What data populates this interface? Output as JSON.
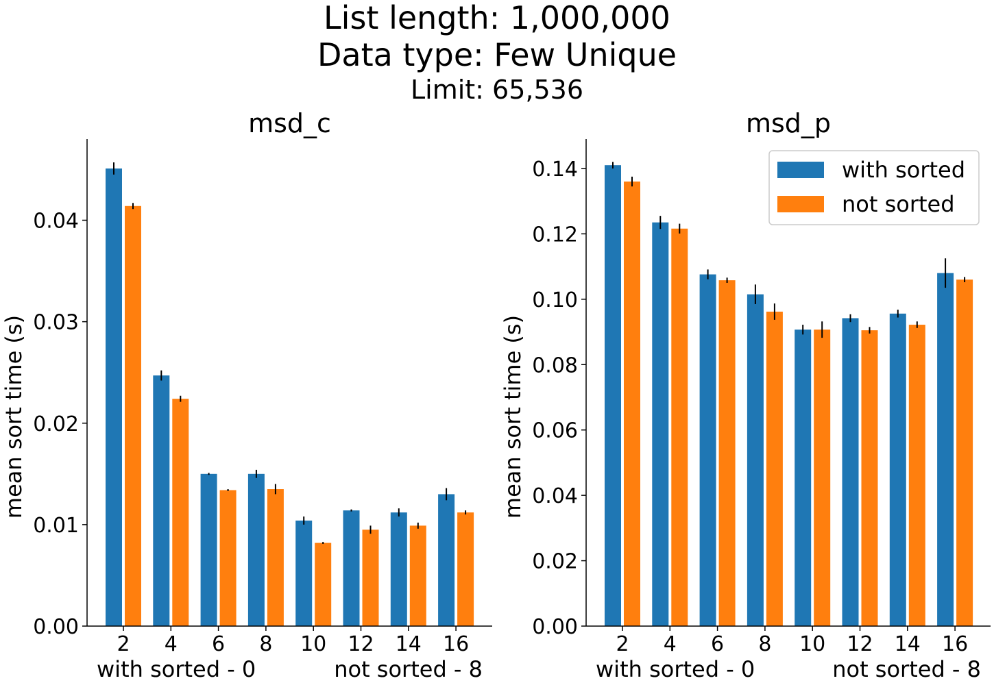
{
  "figure": {
    "title_line1": "List length: 1,000,000",
    "title_line2": "Data type: Few Unique",
    "title_line3": "Limit: 65,536"
  },
  "legend": {
    "placement": "top-right",
    "entries": [
      "with sorted",
      "not sorted"
    ]
  },
  "colors": {
    "with_sorted": "#1f77b4",
    "not_sorted": "#ff7f0e",
    "error_bar": "#000000"
  },
  "chart_data": [
    {
      "type": "bar",
      "title": "msd_c",
      "xlabel_left": "with sorted - 0",
      "xlabel_right": "not sorted - 8",
      "ylabel": "mean sort time (s)",
      "categories": [
        "2",
        "4",
        "6",
        "8",
        "10",
        "12",
        "14",
        "16"
      ],
      "ylim": [
        0,
        0.048
      ],
      "yticks": [
        0.0,
        0.01,
        0.02,
        0.03,
        0.04
      ],
      "ytick_labels": [
        "0.00",
        "0.01",
        "0.02",
        "0.03",
        "0.04"
      ],
      "grid": false,
      "series": [
        {
          "name": "with sorted",
          "values": [
            0.0451,
            0.0247,
            0.015,
            0.015,
            0.0104,
            0.0114,
            0.0112,
            0.013
          ],
          "errors": [
            0.0006,
            0.0005,
            0.0001,
            0.0004,
            0.0004,
            0.0001,
            0.0004,
            0.0006
          ]
        },
        {
          "name": "not sorted",
          "values": [
            0.0414,
            0.0224,
            0.0134,
            0.0135,
            0.0082,
            0.0095,
            0.0099,
            0.0112
          ],
          "errors": [
            0.0003,
            0.0003,
            0.0001,
            0.0005,
            0.0001,
            0.0004,
            0.0003,
            0.0002
          ]
        }
      ]
    },
    {
      "type": "bar",
      "title": "msd_p",
      "xlabel_left": "with sorted - 0",
      "xlabel_right": "not sorted - 8",
      "ylabel": "mean sort time (s)",
      "categories": [
        "2",
        "4",
        "6",
        "8",
        "10",
        "12",
        "14",
        "16"
      ],
      "ylim": [
        0,
        0.149
      ],
      "yticks": [
        0.0,
        0.02,
        0.04,
        0.06,
        0.08,
        0.1,
        0.12,
        0.14
      ],
      "ytick_labels": [
        "0.00",
        "0.02",
        "0.04",
        "0.06",
        "0.08",
        "0.10",
        "0.12",
        "0.14"
      ],
      "grid": false,
      "series": [
        {
          "name": "with sorted",
          "values": [
            0.141,
            0.1235,
            0.1076,
            0.1015,
            0.0907,
            0.0942,
            0.0956,
            0.108
          ],
          "errors": [
            0.001,
            0.002,
            0.0015,
            0.003,
            0.0015,
            0.0012,
            0.0012,
            0.0045
          ]
        },
        {
          "name": "not sorted",
          "values": [
            0.136,
            0.1216,
            0.1058,
            0.0962,
            0.0907,
            0.0905,
            0.0922,
            0.106
          ],
          "errors": [
            0.0015,
            0.0015,
            0.0008,
            0.0025,
            0.0025,
            0.001,
            0.001,
            0.0008
          ]
        }
      ]
    }
  ]
}
